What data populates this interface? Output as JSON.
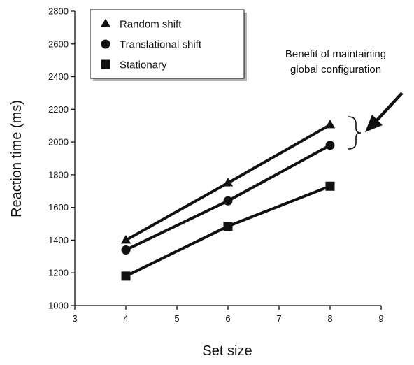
{
  "chart_data": {
    "type": "line",
    "title": "",
    "xlabel": "Set size",
    "ylabel": "Reaction time (ms)",
    "xlim": [
      3,
      9
    ],
    "ylim": [
      1000,
      2800
    ],
    "xticks": [
      3,
      4,
      5,
      6,
      7,
      8,
      9
    ],
    "yticks": [
      1000,
      1200,
      1400,
      1600,
      1800,
      2000,
      2200,
      2400,
      2600,
      2800
    ],
    "x": [
      4,
      6,
      8
    ],
    "grid": false,
    "legend_position": "top-left",
    "series": [
      {
        "name": "Random shift",
        "marker": "triangle",
        "values": [
          1400,
          1750,
          2105
        ]
      },
      {
        "name": "Translational shift",
        "marker": "circle",
        "values": [
          1340,
          1640,
          1980
        ]
      },
      {
        "name": "Stationary",
        "marker": "square",
        "values": [
          1180,
          1485,
          1730
        ]
      }
    ],
    "annotation": {
      "lines": [
        "Benefit of maintaining",
        "global configuration"
      ]
    }
  }
}
